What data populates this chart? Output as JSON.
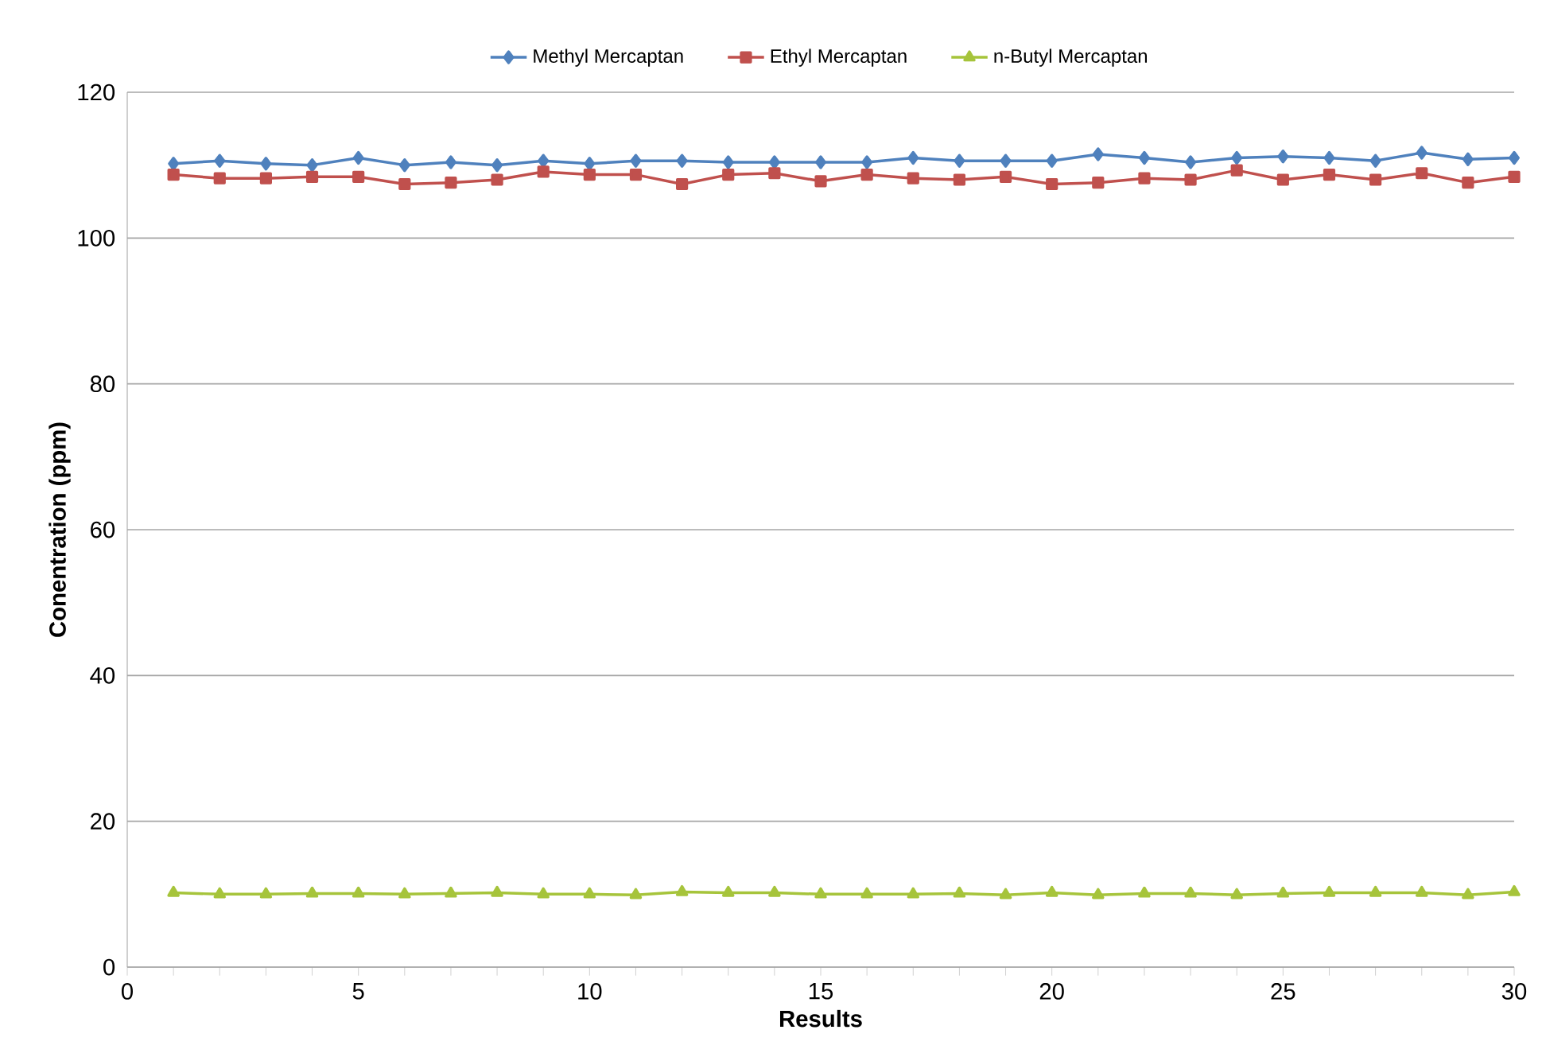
{
  "chart_data": {
    "type": "line",
    "xlabel": "Results",
    "ylabel": "Conentration (ppm)",
    "x": [
      1,
      2,
      3,
      4,
      5,
      6,
      7,
      8,
      9,
      10,
      11,
      12,
      13,
      14,
      15,
      16,
      17,
      18,
      19,
      20,
      21,
      22,
      23,
      24,
      25,
      26,
      27,
      28,
      29,
      30
    ],
    "series": [
      {
        "name": "Methyl Mercaptan",
        "color": "#4f81bd",
        "marker": "diamond",
        "values": [
          110.2,
          110.6,
          110.2,
          110.0,
          111.0,
          110.0,
          110.4,
          110.0,
          110.6,
          110.2,
          110.6,
          110.6,
          110.4,
          110.4,
          110.4,
          110.4,
          111.0,
          110.6,
          110.6,
          110.6,
          111.5,
          111.0,
          110.4,
          111.0,
          111.2,
          111.0,
          110.6,
          111.7,
          110.8,
          111.0
        ]
      },
      {
        "name": "Ethyl Mercaptan",
        "color": "#c0504d",
        "marker": "square",
        "values": [
          108.7,
          108.2,
          108.2,
          108.4,
          108.4,
          107.4,
          107.6,
          108.0,
          109.1,
          108.7,
          108.7,
          107.4,
          108.7,
          108.9,
          107.8,
          108.7,
          108.2,
          108.0,
          108.4,
          107.4,
          107.6,
          108.2,
          108.0,
          109.3,
          108.0,
          108.7,
          108.0,
          108.9,
          107.6,
          108.4
        ]
      },
      {
        "name": "n-Butyl Mercaptan",
        "color": "#a6c43b",
        "marker": "triangle",
        "values": [
          10.2,
          10.0,
          10.0,
          10.1,
          10.1,
          10.0,
          10.1,
          10.2,
          10.0,
          10.0,
          9.9,
          10.3,
          10.2,
          10.2,
          10.0,
          10.0,
          10.0,
          10.1,
          9.9,
          10.2,
          9.9,
          10.1,
          10.1,
          9.9,
          10.1,
          10.2,
          10.2,
          10.2,
          9.9,
          10.3
        ]
      }
    ],
    "xlim": [
      0,
      30
    ],
    "xticks": [
      0,
      {
        "value": 1,
        "label": null
      },
      {
        "value": 2,
        "label": null
      },
      {
        "value": 3,
        "label": null
      },
      {
        "value": 4,
        "label": null
      },
      5,
      {
        "value": 6,
        "label": null
      },
      {
        "value": 7,
        "label": null
      },
      {
        "value": 8,
        "label": null
      },
      {
        "value": 9,
        "label": null
      },
      10,
      {
        "value": 11,
        "label": null
      },
      {
        "value": 12,
        "label": null
      },
      {
        "value": 13,
        "label": null
      },
      {
        "value": 14,
        "label": null
      },
      15,
      {
        "value": 16,
        "label": null
      },
      {
        "value": 17,
        "label": null
      },
      {
        "value": 18,
        "label": null
      },
      {
        "value": 19,
        "label": null
      },
      20,
      {
        "value": 21,
        "label": null
      },
      {
        "value": 22,
        "label": null
      },
      {
        "value": 23,
        "label": null
      },
      {
        "value": 24,
        "label": null
      },
      25,
      {
        "value": 26,
        "label": null
      },
      {
        "value": 27,
        "label": null
      },
      {
        "value": 28,
        "label": null
      },
      {
        "value": 29,
        "label": null
      },
      30
    ],
    "ylim": [
      0,
      120
    ],
    "yticks": [
      0,
      20,
      40,
      60,
      80,
      100,
      120
    ],
    "grid": "y",
    "legend": "top",
    "line_style": "solid"
  }
}
